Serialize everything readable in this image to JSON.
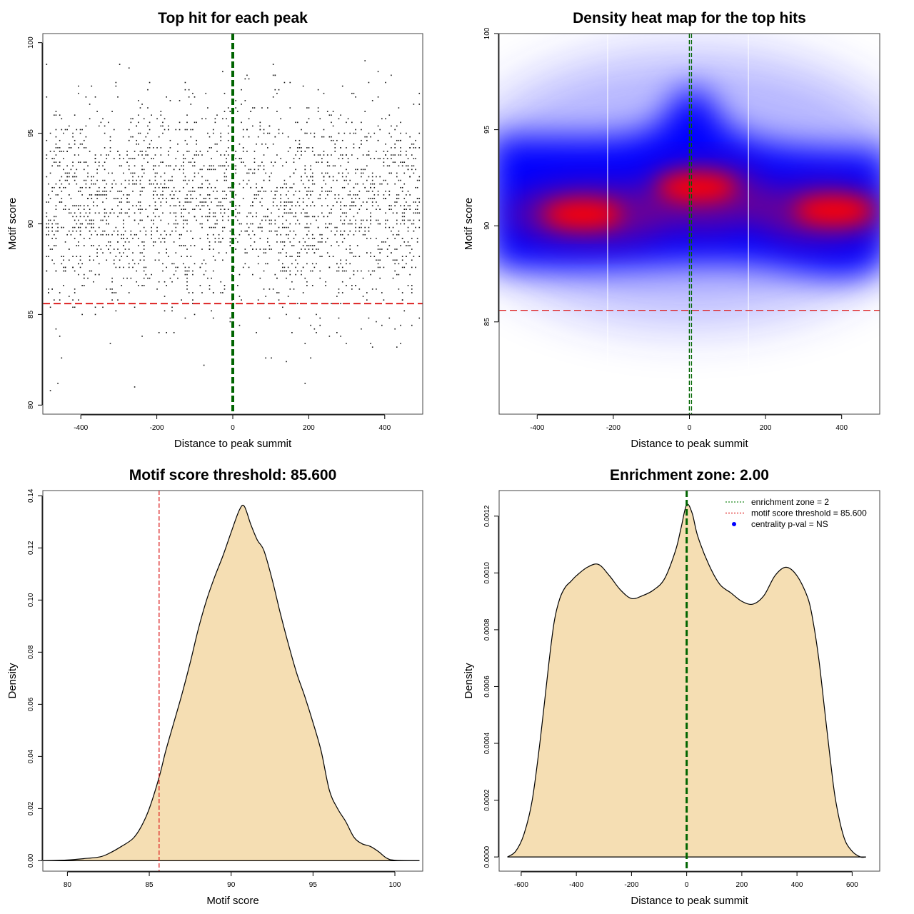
{
  "chart_data": [
    {
      "type": "scatter",
      "title": "Top hit for each peak",
      "xlabel": "Distance to peak summit",
      "ylabel": "Motif score",
      "xlim": [
        -500,
        500
      ],
      "ylim": [
        79.5,
        100.5
      ],
      "xticks": [
        -400,
        -200,
        0,
        200,
        400
      ],
      "yticks": [
        80,
        85,
        90,
        95,
        100
      ],
      "point_count": 2500,
      "reference_lines": [
        {
          "orientation": "vertical",
          "value": 0,
          "color": "#006400",
          "style": "dashed"
        },
        {
          "orientation": "horizontal",
          "value": 85.6,
          "color": "#dd2222",
          "style": "dashed"
        }
      ]
    },
    {
      "type": "heatmap",
      "title": "Density heat map for the top hits",
      "xlabel": "Distance to peak summit",
      "ylabel": "Motif score",
      "xlim": [
        -500,
        500
      ],
      "ylim": [
        80.2,
        100
      ],
      "xticks": [
        -400,
        -200,
        0,
        200,
        400
      ],
      "yticks": [
        85,
        90,
        95,
        100
      ],
      "colors": [
        "#ffffff",
        "#0000ff",
        "#ff0000"
      ],
      "density_peaks": [
        {
          "x": -280,
          "y": 90.6
        },
        {
          "x": 20,
          "y": 92.0
        },
        {
          "x": 380,
          "y": 90.8
        }
      ],
      "reference_lines": [
        {
          "orientation": "vertical",
          "value": 0,
          "color": "#006400",
          "style": "dashed"
        },
        {
          "orientation": "horizontal",
          "value": 85.6,
          "color": "#dd2222",
          "style": "dashed"
        }
      ]
    },
    {
      "type": "area",
      "title": "Motif score threshold: 85.600",
      "xlabel": "Motif score",
      "ylabel": "Density",
      "xlim": [
        78.5,
        101.7
      ],
      "ylim": [
        -0.004,
        0.142
      ],
      "xticks": [
        80,
        85,
        90,
        95,
        100
      ],
      "yticks": [
        0.0,
        0.02,
        0.04,
        0.06,
        0.08,
        0.1,
        0.12,
        0.14
      ],
      "ytick_labels": [
        "0.00",
        "0.02",
        "0.04",
        "0.06",
        "0.08",
        "0.10",
        "0.12",
        "0.14"
      ],
      "fill": "#f5deb3",
      "x": [
        78.5,
        80,
        81,
        82,
        82.6,
        83.3,
        84,
        84.5,
        85,
        85.6,
        86,
        86.5,
        87,
        87.5,
        88,
        88.5,
        89,
        89.5,
        90,
        90.5,
        90.8,
        91.2,
        91.6,
        92,
        92.5,
        93,
        93.5,
        94,
        94.5,
        95,
        95.5,
        96,
        96.5,
        97,
        97.5,
        98,
        98.5,
        99,
        99.5,
        100,
        101.5
      ],
      "y": [
        0.0,
        0.0003,
        0.0008,
        0.0015,
        0.003,
        0.0055,
        0.0085,
        0.013,
        0.02,
        0.032,
        0.042,
        0.053,
        0.064,
        0.076,
        0.089,
        0.1,
        0.109,
        0.117,
        0.126,
        0.1345,
        0.136,
        0.129,
        0.123,
        0.119,
        0.108,
        0.095,
        0.083,
        0.072,
        0.063,
        0.053,
        0.042,
        0.027,
        0.02,
        0.015,
        0.009,
        0.0065,
        0.0055,
        0.0035,
        0.001,
        0.0002,
        0.0
      ]
    },
    {
      "type": "area",
      "title": "Enrichment zone: 2.00",
      "xlabel": "Distance to peak summit",
      "ylabel": "Density",
      "xlim": [
        -680,
        700
      ],
      "ylim": [
        -5e-05,
        0.00129
      ],
      "xticks": [
        -600,
        -400,
        -200,
        0,
        200,
        400,
        600
      ],
      "yticks": [
        0.0,
        0.0002,
        0.0004,
        0.0006,
        0.0008,
        0.001,
        0.0012
      ],
      "ytick_labels": [
        "0.0000",
        "0.0002",
        "0.0004",
        "0.0006",
        "0.0008",
        "0.0010",
        "0.0012"
      ],
      "fill": "#f5deb3",
      "x": [
        -650,
        -620,
        -590,
        -560,
        -530,
        -500,
        -480,
        -460,
        -440,
        -420,
        -400,
        -360,
        -320,
        -280,
        -240,
        -200,
        -160,
        -120,
        -80,
        -40,
        -20,
        0,
        20,
        40,
        80,
        120,
        160,
        200,
        240,
        280,
        320,
        360,
        400,
        440,
        460,
        480,
        500,
        520,
        540,
        570,
        600,
        630,
        650
      ],
      "y": [
        0.0,
        2e-05,
        8e-05,
        0.0002,
        0.00042,
        0.00068,
        0.00083,
        0.00091,
        0.00095,
        0.00097,
        0.00099,
        0.00102,
        0.00103,
        0.00099,
        0.00094,
        0.00091,
        0.00092,
        0.00094,
        0.00098,
        0.00108,
        0.00116,
        0.00124,
        0.00121,
        0.00113,
        0.00103,
        0.00096,
        0.00093,
        0.0009,
        0.00089,
        0.00092,
        0.00099,
        0.00102,
        0.00099,
        0.00091,
        0.00082,
        0.00069,
        0.00052,
        0.00035,
        0.0002,
        7e-05,
        2e-05,
        0.0,
        0.0
      ],
      "reference_lines": [
        {
          "orientation": "vertical",
          "value": 0,
          "color": "#006400",
          "style": "dashed"
        }
      ],
      "legend": {
        "placement": "top-right",
        "entries": [
          {
            "label": "enrichment zone = 2",
            "color": "#228b22",
            "symbol": "dotted-line"
          },
          {
            "label": "motif score threshold = 85.600",
            "color": "#dd2222",
            "symbol": "dotted-line"
          },
          {
            "label": "centrality p-val = NS",
            "color": "#0000ff",
            "symbol": "dot"
          }
        ]
      }
    }
  ]
}
